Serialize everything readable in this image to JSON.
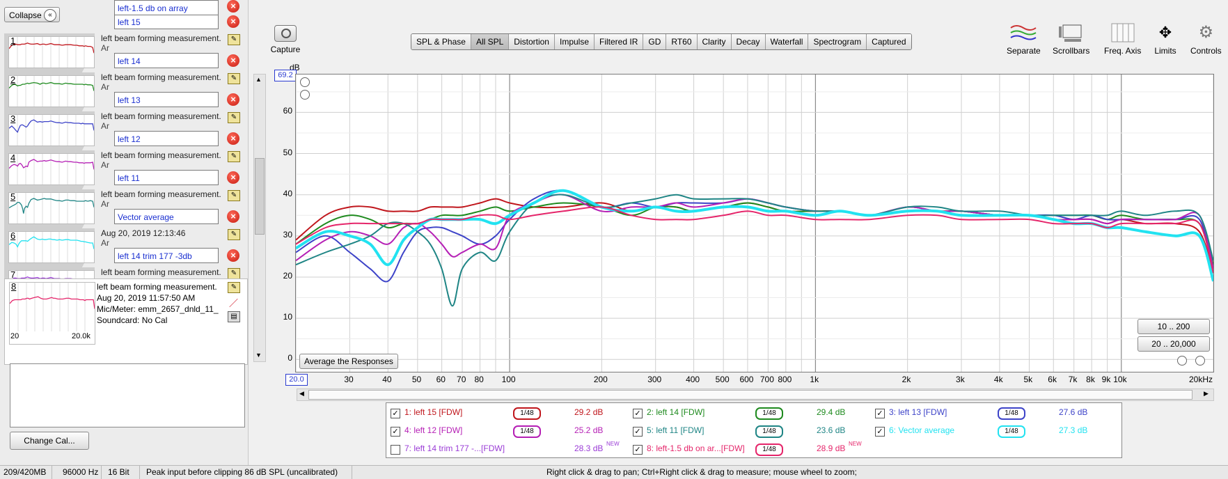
{
  "left_panel": {
    "collapse_label": "Collapse",
    "change_cal_label": "Change Cal...",
    "measurements": [
      {
        "num": "1",
        "name": "left 15",
        "desc": "left beam forming measurement.",
        "color": "#c0161c"
      },
      {
        "num": "2",
        "name": "left 14",
        "desc": "left beam forming measurement.",
        "color": "#1e8a1e"
      },
      {
        "num": "3",
        "name": "left 13",
        "desc": "left beam forming measurement.",
        "color": "#3d43c8"
      },
      {
        "num": "4",
        "name": "left 12",
        "desc": "left beam forming measurement.",
        "color": "#b51fb5"
      },
      {
        "num": "5",
        "name": "left 11",
        "desc": "left beam forming measurement.",
        "color": "#1f8585"
      },
      {
        "num": "6",
        "name": "Vector average",
        "desc": "Aug 20, 2019 12:13:46",
        "color": "#22e2f0"
      },
      {
        "num": "7",
        "name": "left 14 trim 177 -3db",
        "desc": "left beam forming measurement.",
        "color": "#9a3bd6"
      },
      {
        "num": "8",
        "name": "left-1.5 db on array",
        "desc": "left beam forming measurement.",
        "color": "#e5256a"
      }
    ],
    "desc2_partial": "Ar",
    "last_details": {
      "date": "Aug 20, 2019 11:57:50 AM",
      "mic": "Mic/Meter: emm_2657_dnld_11_",
      "soundcard": "Soundcard: No Cal",
      "thumb_xmin": "20",
      "thumb_xmax": "20.0k"
    }
  },
  "toolbar": {
    "capture_label": "Capture",
    "tabs": [
      "SPL & Phase",
      "All SPL",
      "Distortion",
      "Impulse",
      "Filtered IR",
      "GD",
      "RT60",
      "Clarity",
      "Decay",
      "Waterfall",
      "Spectrogram",
      "Captured"
    ],
    "active_tab": "All SPL",
    "tools": [
      "Separate",
      "Scrollbars",
      "Freq. Axis",
      "Limits",
      "Controls"
    ]
  },
  "graph": {
    "ylabel": "dB",
    "ymax_box": "69.2",
    "xmin_box": "20.0",
    "yticks": [
      "60",
      "50",
      "40",
      "30",
      "20",
      "10",
      "0"
    ],
    "xticks": [
      "30",
      "40",
      "50",
      "60",
      "70",
      "80",
      "100",
      "200",
      "300",
      "400",
      "500",
      "600",
      "700",
      "800",
      "1k",
      "2k",
      "3k",
      "4k",
      "5k",
      "6k",
      "7k",
      "8k",
      "9k",
      "10k",
      "20kHz"
    ],
    "average_btn": "Average the Responses",
    "range_btns": [
      "10 .. 200",
      "20 .. 20,000"
    ]
  },
  "chart_data": {
    "type": "line",
    "x_scale": "log",
    "xlim": [
      20,
      20000
    ],
    "ylim": [
      -3,
      69.2
    ],
    "ylabel": "dB",
    "grid": true,
    "x": [
      20,
      25,
      30,
      35,
      40,
      45,
      50,
      55,
      60,
      65,
      70,
      80,
      90,
      100,
      120,
      150,
      200,
      250,
      300,
      350,
      400,
      500,
      600,
      700,
      800,
      1000,
      1200,
      1500,
      2000,
      2500,
      3000,
      4000,
      5000,
      6000,
      7000,
      8000,
      9000,
      10000,
      12000,
      15000,
      18000,
      20000
    ],
    "series": [
      {
        "name": "1: left 15 [FDW]",
        "color": "#c0161c",
        "y": [
          29,
          35,
          37,
          37,
          36,
          36,
          36,
          37,
          37,
          37,
          37,
          38,
          39,
          38,
          37,
          37,
          38,
          36,
          37,
          37,
          36,
          37,
          38,
          37,
          36,
          36,
          36,
          35,
          36,
          36,
          36,
          35,
          35,
          34,
          34,
          34,
          33,
          34,
          33,
          33,
          31,
          21
        ]
      },
      {
        "name": "2: left 14 [FDW]",
        "color": "#1e8a1e",
        "y": [
          28,
          33,
          35,
          34,
          32,
          33,
          33,
          34,
          35,
          35,
          35,
          36,
          37,
          36,
          37,
          38,
          37,
          35,
          37,
          37,
          36,
          37,
          38,
          37,
          36,
          36,
          36,
          35,
          37,
          36,
          36,
          35,
          35,
          35,
          35,
          35,
          34,
          35,
          34,
          34,
          33,
          23
        ]
      },
      {
        "name": "3: left 13 [FDW]",
        "color": "#3d43c8",
        "y": [
          26,
          30,
          26,
          22,
          19,
          26,
          31,
          32,
          32,
          31,
          30,
          28,
          30,
          34,
          39,
          41,
          37,
          38,
          37,
          38,
          38,
          38,
          39,
          38,
          37,
          36,
          36,
          35,
          37,
          36,
          36,
          35,
          35,
          35,
          34,
          35,
          34,
          34,
          34,
          34,
          34,
          22
        ]
      },
      {
        "name": "4: left 12 [FDW]",
        "color": "#b51fb5",
        "y": [
          24,
          29,
          31,
          30,
          28,
          32,
          33,
          31,
          28,
          25,
          26,
          28,
          27,
          35,
          38,
          40,
          36,
          37,
          37,
          38,
          37,
          38,
          39,
          38,
          37,
          36,
          36,
          35,
          37,
          36,
          36,
          35,
          35,
          34,
          34,
          34,
          33,
          34,
          34,
          34,
          35,
          22
        ]
      },
      {
        "name": "5: left 11 [FDW]",
        "color": "#1f8585",
        "y": [
          23,
          26,
          28,
          30,
          33,
          33,
          31,
          28,
          22,
          13,
          22,
          26,
          24,
          31,
          38,
          40,
          37,
          38,
          39,
          40,
          39,
          39,
          39,
          38,
          37,
          36,
          36,
          35,
          37,
          37,
          36,
          36,
          35,
          35,
          35,
          35,
          35,
          36,
          35,
          36,
          35,
          24
        ]
      },
      {
        "name": "6: Vector average",
        "color": "#22e2f0",
        "y": [
          27,
          31,
          30,
          28,
          23,
          29,
          32,
          34,
          34,
          34,
          34,
          34,
          33,
          35,
          38,
          41,
          37,
          36,
          37,
          36,
          36,
          37,
          37,
          36,
          36,
          35,
          36,
          35,
          36,
          36,
          35,
          35,
          35,
          34,
          33,
          33,
          32,
          32,
          31,
          30,
          30,
          19
        ]
      },
      {
        "name": "8: left-1.5 db on ar...[FDW]",
        "color": "#e5256a",
        "y": [
          28,
          32,
          33,
          33,
          33,
          33,
          33,
          34,
          34,
          34,
          34,
          35,
          35,
          34,
          35,
          36,
          37,
          35,
          34,
          34,
          34,
          35,
          36,
          35,
          35,
          34,
          34,
          34,
          35,
          35,
          34,
          34,
          34,
          33,
          33,
          33,
          32,
          33,
          33,
          33,
          33,
          21
        ]
      }
    ]
  },
  "legend": [
    {
      "label": "1: left 15 [FDW]",
      "smooth": "1/48",
      "value": "29.2 dB",
      "color": "#c0161c",
      "checked": true,
      "new": ""
    },
    {
      "label": "2: left 14 [FDW]",
      "smooth": "1/48",
      "value": "29.4 dB",
      "color": "#1e8a1e",
      "checked": true,
      "new": ""
    },
    {
      "label": "3: left 13 [FDW]",
      "smooth": "1/48",
      "value": "27.6 dB",
      "color": "#3d43c8",
      "checked": true,
      "new": ""
    },
    {
      "label": "4: left 12 [FDW]",
      "smooth": "1/48",
      "value": "25.2 dB",
      "color": "#b51fb5",
      "checked": true,
      "new": ""
    },
    {
      "label": "5: left 11 [FDW]",
      "smooth": "1/48",
      "value": "23.6 dB",
      "color": "#1f8585",
      "checked": true,
      "new": ""
    },
    {
      "label": "6: Vector average",
      "smooth": "1/48",
      "value": "27.3 dB",
      "color": "#22e2f0",
      "checked": true,
      "new": ""
    },
    {
      "label": "7: left 14 trim 177 -...[FDW]",
      "smooth": "",
      "value": "28.3 dB",
      "color": "#9a3bd6",
      "checked": false,
      "new": "NEW"
    },
    {
      "label": "8: left-1.5 db on ar...[FDW]",
      "smooth": "1/48",
      "value": "28.9 dB",
      "color": "#e5256a",
      "checked": true,
      "new": "NEW"
    }
  ],
  "status": {
    "memory": "209/420MB",
    "rate": "96000 Hz",
    "bits": "16 Bit",
    "peak": "Peak input before clipping 86 dB SPL (uncalibrated)",
    "hint": "Right click & drag to pan; Ctrl+Right click & drag to measure; mouse wheel to zoom;"
  }
}
